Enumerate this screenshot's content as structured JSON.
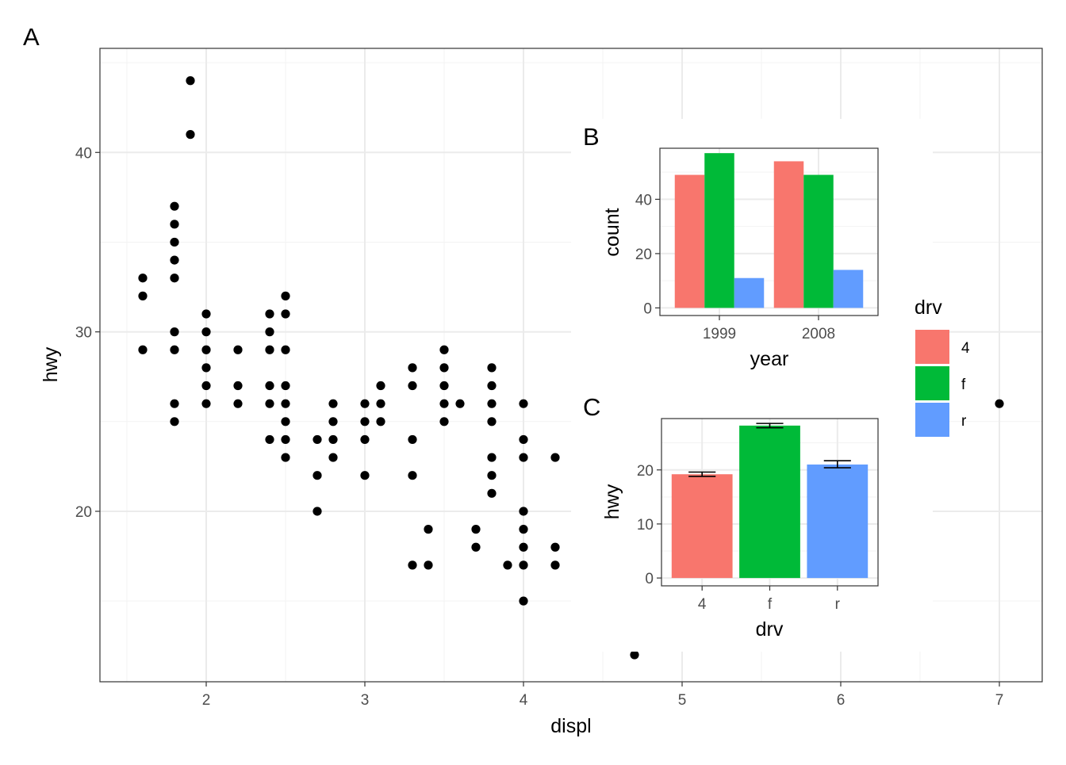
{
  "chart_data": [
    {
      "tag": "A",
      "type": "scatter",
      "xlabel": "displ",
      "ylabel": "hwy",
      "xlim": [
        1.33,
        7.27
      ],
      "ylim": [
        10.5,
        45.8
      ],
      "xticks": [
        "2",
        "3",
        "4",
        "5",
        "6",
        "7"
      ],
      "yticks": [
        "20",
        "30",
        "40"
      ],
      "grid": true,
      "points": [
        [
          1.6,
          33
        ],
        [
          1.6,
          32
        ],
        [
          1.6,
          29
        ],
        [
          1.8,
          37
        ],
        [
          1.8,
          36
        ],
        [
          1.8,
          35
        ],
        [
          1.8,
          34
        ],
        [
          1.8,
          33
        ],
        [
          1.8,
          30
        ],
        [
          1.8,
          29
        ],
        [
          1.8,
          26
        ],
        [
          1.8,
          25
        ],
        [
          1.9,
          44
        ],
        [
          1.9,
          41
        ],
        [
          2.0,
          31
        ],
        [
          2.0,
          30
        ],
        [
          2.0,
          29
        ],
        [
          2.0,
          28
        ],
        [
          2.0,
          27
        ],
        [
          2.0,
          26
        ],
        [
          2.2,
          29
        ],
        [
          2.2,
          27
        ],
        [
          2.2,
          26
        ],
        [
          2.4,
          31
        ],
        [
          2.4,
          30
        ],
        [
          2.4,
          29
        ],
        [
          2.4,
          27
        ],
        [
          2.4,
          26
        ],
        [
          2.4,
          24
        ],
        [
          2.5,
          32
        ],
        [
          2.5,
          31
        ],
        [
          2.5,
          29
        ],
        [
          2.5,
          27
        ],
        [
          2.5,
          26
        ],
        [
          2.5,
          25
        ],
        [
          2.5,
          24
        ],
        [
          2.5,
          23
        ],
        [
          2.7,
          24
        ],
        [
          2.7,
          22
        ],
        [
          2.7,
          20
        ],
        [
          2.8,
          26
        ],
        [
          2.8,
          25
        ],
        [
          2.8,
          24
        ],
        [
          2.8,
          23
        ],
        [
          3.0,
          26
        ],
        [
          3.0,
          25
        ],
        [
          3.0,
          24
        ],
        [
          3.0,
          22
        ],
        [
          3.1,
          27
        ],
        [
          3.1,
          26
        ],
        [
          3.1,
          25
        ],
        [
          3.3,
          28
        ],
        [
          3.3,
          27
        ],
        [
          3.3,
          24
        ],
        [
          3.3,
          22
        ],
        [
          3.3,
          17
        ],
        [
          3.4,
          19
        ],
        [
          3.4,
          17
        ],
        [
          3.5,
          29
        ],
        [
          3.5,
          28
        ],
        [
          3.5,
          27
        ],
        [
          3.5,
          26
        ],
        [
          3.5,
          25
        ],
        [
          3.6,
          26
        ],
        [
          3.7,
          19
        ],
        [
          3.7,
          18
        ],
        [
          3.8,
          28
        ],
        [
          3.8,
          27
        ],
        [
          3.8,
          26
        ],
        [
          3.8,
          25
        ],
        [
          3.8,
          23
        ],
        [
          3.8,
          22
        ],
        [
          3.8,
          21
        ],
        [
          3.9,
          17
        ],
        [
          4.0,
          26
        ],
        [
          4.0,
          24
        ],
        [
          4.0,
          23
        ],
        [
          4.0,
          20
        ],
        [
          4.0,
          19
        ],
        [
          4.0,
          18
        ],
        [
          4.0,
          17
        ],
        [
          4.0,
          15
        ],
        [
          4.2,
          23
        ],
        [
          4.2,
          18
        ],
        [
          4.2,
          17
        ],
        [
          4.7,
          12
        ],
        [
          7.0,
          26
        ]
      ]
    },
    {
      "tag": "B",
      "type": "bar",
      "xlabel": "year",
      "ylabel": "count",
      "categories": [
        "1999",
        "2008"
      ],
      "ylim": [
        -2.8,
        58.8
      ],
      "yticks": [
        "0",
        "20",
        "40"
      ],
      "grid": true,
      "series": [
        {
          "name": "4",
          "color": "#f8766d",
          "values": [
            49,
            54
          ]
        },
        {
          "name": "f",
          "color": "#00ba38",
          "values": [
            57,
            49
          ]
        },
        {
          "name": "r",
          "color": "#619cff",
          "values": [
            11,
            14
          ]
        }
      ]
    },
    {
      "tag": "C",
      "type": "bar",
      "xlabel": "drv",
      "ylabel": "hwy",
      "categories": [
        "4",
        "f",
        "r"
      ],
      "ylim": [
        -1.45,
        29.5
      ],
      "yticks": [
        "0",
        "10",
        "20"
      ],
      "grid": true,
      "values": [
        19.2,
        28.2,
        21.0
      ],
      "error_low": [
        18.8,
        27.8,
        20.4
      ],
      "error_high": [
        19.6,
        28.6,
        21.7
      ],
      "colors": [
        "#f8766d",
        "#00ba38",
        "#619cff"
      ]
    }
  ],
  "legend": {
    "title": "drv",
    "placement": "right",
    "items": [
      {
        "label": "4",
        "color": "#f8766d"
      },
      {
        "label": "f",
        "color": "#00ba38"
      },
      {
        "label": "r",
        "color": "#619cff"
      }
    ]
  }
}
